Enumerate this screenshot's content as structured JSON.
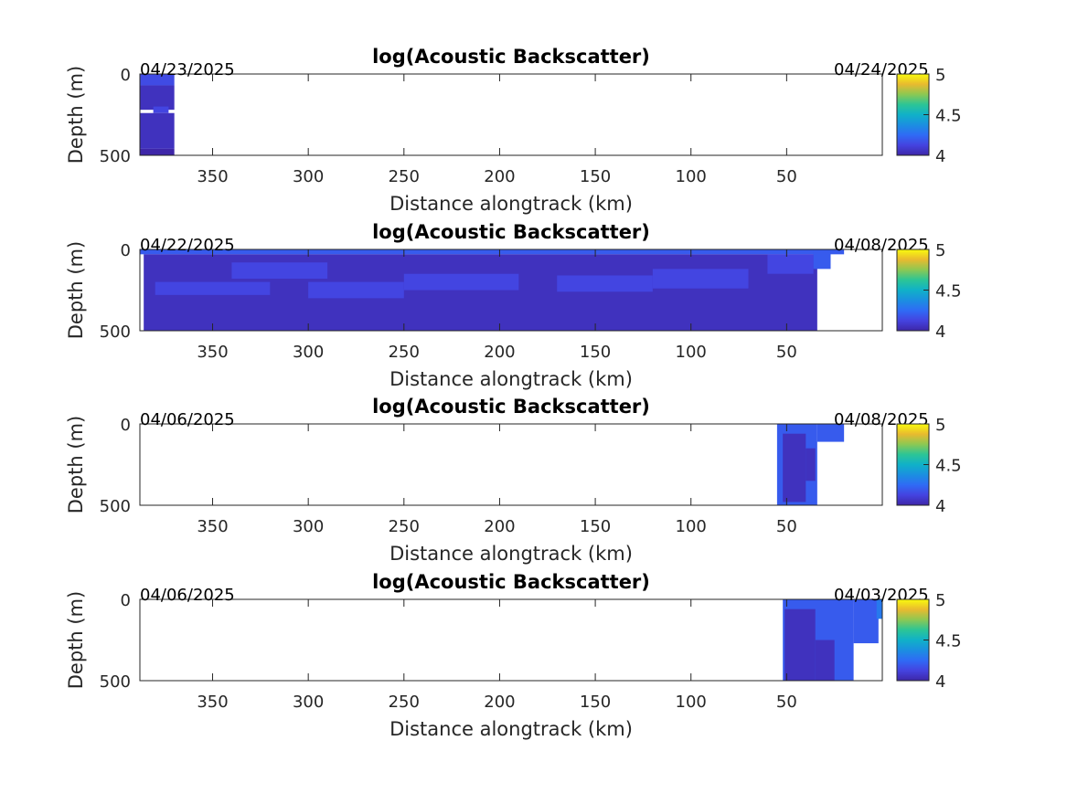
{
  "chart_data": [
    {
      "type": "heatmap",
      "title": "log(Acoustic Backscatter)",
      "xlabel": "Distance alongtrack (km)",
      "ylabel": "Depth (m)",
      "xlim": [
        388,
        0
      ],
      "ylim": [
        0,
        500
      ],
      "x_reversed": true,
      "y_reversed": true,
      "xticks": [
        350,
        300,
        250,
        200,
        150,
        100,
        50
      ],
      "yticks": [
        0,
        500
      ],
      "date_start": "04/23/2025",
      "date_end": "04/24/2025",
      "colorbar": {
        "range": [
          4,
          5
        ],
        "ticks": [
          4,
          4.5,
          5
        ],
        "colormap": "parula"
      },
      "cells": [
        {
          "x": [
            388,
            370
          ],
          "y": [
            0,
            70
          ],
          "value": 4.15
        },
        {
          "x": [
            388,
            370
          ],
          "y": [
            70,
            220
          ],
          "value": 4.05
        },
        {
          "x": [
            381,
            373
          ],
          "y": [
            200,
            240
          ],
          "value": 4.13
        },
        {
          "x": [
            388,
            370
          ],
          "y": [
            240,
            460
          ],
          "value": 4.05
        },
        {
          "x": [
            388,
            370
          ],
          "y": [
            460,
            500
          ],
          "value": 3.98
        }
      ]
    },
    {
      "type": "heatmap",
      "title": "log(Acoustic Backscatter)",
      "xlabel": "Distance alongtrack (km)",
      "ylabel": "Depth (m)",
      "xlim": [
        388,
        0
      ],
      "ylim": [
        0,
        500
      ],
      "x_reversed": true,
      "y_reversed": true,
      "xticks": [
        350,
        300,
        250,
        200,
        150,
        100,
        50
      ],
      "yticks": [
        0,
        500
      ],
      "date_start": "04/22/2025",
      "date_end": "04/08/2025",
      "colorbar": {
        "range": [
          4,
          5
        ],
        "ticks": [
          4,
          4.5,
          5
        ],
        "colormap": "parula"
      },
      "cells": [
        {
          "x": [
            388,
            20
          ],
          "y": [
            0,
            30
          ],
          "value": 4.2
        },
        {
          "x": [
            386,
            34
          ],
          "y": [
            30,
            500
          ],
          "value": 4.05
        },
        {
          "x": [
            340,
            290
          ],
          "y": [
            80,
            180
          ],
          "value": 4.13
        },
        {
          "x": [
            380,
            320
          ],
          "y": [
            200,
            280
          ],
          "value": 4.13
        },
        {
          "x": [
            300,
            250
          ],
          "y": [
            200,
            300
          ],
          "value": 4.13
        },
        {
          "x": [
            250,
            190
          ],
          "y": [
            150,
            250
          ],
          "value": 4.13
        },
        {
          "x": [
            170,
            120
          ],
          "y": [
            160,
            260
          ],
          "value": 4.13
        },
        {
          "x": [
            120,
            70
          ],
          "y": [
            120,
            240
          ],
          "value": 4.13
        },
        {
          "x": [
            60,
            36
          ],
          "y": [
            30,
            150
          ],
          "value": 4.13
        },
        {
          "x": [
            36,
            27
          ],
          "y": [
            0,
            120
          ],
          "value": 4.2
        }
      ]
    },
    {
      "type": "heatmap",
      "title": "log(Acoustic Backscatter)",
      "xlabel": "Distance alongtrack (km)",
      "ylabel": "Depth (m)",
      "xlim": [
        388,
        0
      ],
      "ylim": [
        0,
        500
      ],
      "x_reversed": true,
      "y_reversed": true,
      "xticks": [
        350,
        300,
        250,
        200,
        150,
        100,
        50
      ],
      "yticks": [
        0,
        500
      ],
      "date_start": "04/06/2025",
      "date_end": "04/08/2025",
      "colorbar": {
        "range": [
          4,
          5
        ],
        "ticks": [
          4,
          4.5,
          5
        ],
        "colormap": "parula"
      },
      "cells": [
        {
          "x": [
            55,
            34
          ],
          "y": [
            0,
            500
          ],
          "value": 4.2
        },
        {
          "x": [
            34,
            20
          ],
          "y": [
            0,
            110
          ],
          "value": 4.2
        },
        {
          "x": [
            52,
            40
          ],
          "y": [
            60,
            480
          ],
          "value": 4.05
        },
        {
          "x": [
            40,
            35
          ],
          "y": [
            150,
            350
          ],
          "value": 4.05
        }
      ]
    },
    {
      "type": "heatmap",
      "title": "log(Acoustic Backscatter)",
      "xlabel": "Distance alongtrack (km)",
      "ylabel": "Depth (m)",
      "xlim": [
        388,
        0
      ],
      "ylim": [
        0,
        500
      ],
      "x_reversed": true,
      "y_reversed": true,
      "xticks": [
        350,
        300,
        250,
        200,
        150,
        100,
        50
      ],
      "yticks": [
        0,
        500
      ],
      "date_start": "04/06/2025",
      "date_end": "04/03/2025",
      "colorbar": {
        "range": [
          4,
          5
        ],
        "ticks": [
          4,
          4.5,
          5
        ],
        "colormap": "parula"
      },
      "cells": [
        {
          "x": [
            52,
            15
          ],
          "y": [
            0,
            500
          ],
          "value": 4.2
        },
        {
          "x": [
            15,
            2
          ],
          "y": [
            0,
            270
          ],
          "value": 4.2
        },
        {
          "x": [
            51,
            35
          ],
          "y": [
            60,
            500
          ],
          "value": 4.05
        },
        {
          "x": [
            35,
            25
          ],
          "y": [
            250,
            500
          ],
          "value": 4.05
        },
        {
          "x": [
            3,
            0
          ],
          "y": [
            0,
            120
          ],
          "value": 4.3
        }
      ]
    }
  ]
}
